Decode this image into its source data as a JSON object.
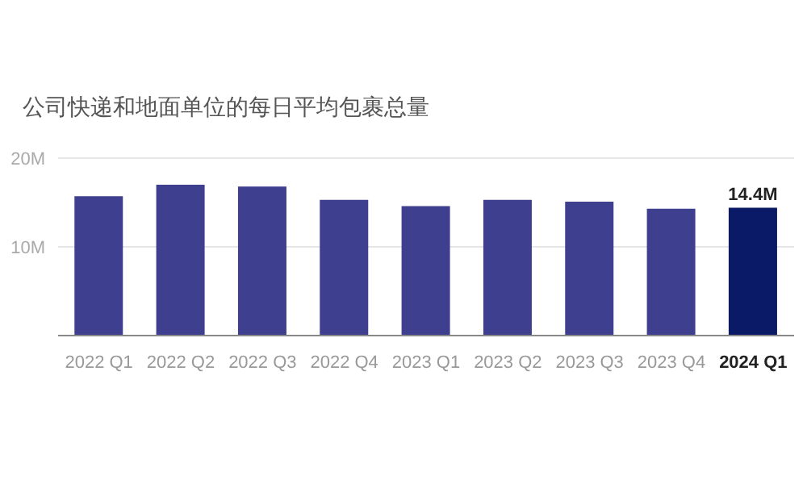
{
  "chart_data": {
    "type": "bar",
    "title": "公司快递和地面单位的每日平均包裹总量",
    "categories": [
      "2022 Q1",
      "2022 Q2",
      "2022 Q3",
      "2022 Q4",
      "2023 Q1",
      "2023 Q2",
      "2023 Q3",
      "2023 Q4",
      "2024 Q1"
    ],
    "values": [
      15.7,
      17.0,
      16.8,
      15.3,
      14.6,
      15.3,
      15.1,
      14.3,
      14.4
    ],
    "colors": [
      "#3f3f8f",
      "#3f3f8f",
      "#3f3f8f",
      "#3f3f8f",
      "#3f3f8f",
      "#3f3f8f",
      "#3f3f8f",
      "#3f3f8f",
      "#0a1a66"
    ],
    "value_labels": [
      null,
      null,
      null,
      null,
      null,
      null,
      null,
      null,
      "14.4M"
    ],
    "ylim": [
      0,
      20
    ],
    "yticks": [
      {
        "value": 10,
        "label": "10M"
      },
      {
        "value": 20,
        "label": "20M"
      }
    ],
    "grid": "y"
  }
}
